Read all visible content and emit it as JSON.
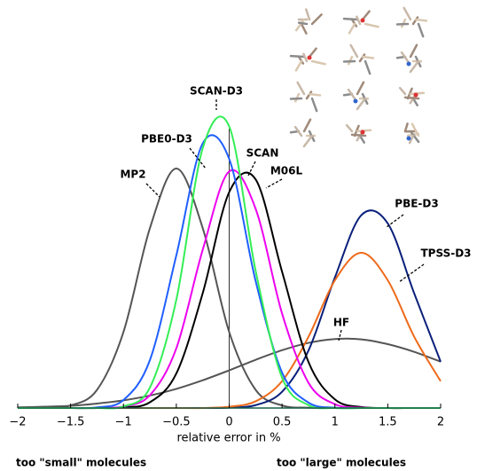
{
  "chart_data": {
    "type": "line",
    "x_label": "relative error in %",
    "annotations": [
      "too \"small\" molecules",
      "too \"large\" molecules"
    ],
    "x": [
      -2,
      -1.75,
      -1.5,
      -1.25,
      -1,
      -0.75,
      -0.5,
      -0.25,
      0,
      0.25,
      0.5,
      0.75,
      1,
      1.25,
      1.5,
      1.75,
      2
    ],
    "xlim": [
      -2,
      2
    ],
    "ylim": [
      0,
      1
    ],
    "xticks": [
      {
        "value": -2,
        "label": "−2"
      },
      {
        "value": -1.5,
        "label": "−1.5"
      },
      {
        "value": -1,
        "label": "−1"
      },
      {
        "value": -0.5,
        "label": "−0.5"
      },
      0,
      0.5,
      1,
      1.5,
      2
    ],
    "series": [
      {
        "name": "MP2",
        "color": "#555555",
        "values": [
          0,
          0.001,
          0.008,
          0.057,
          0.238,
          0.563,
          0.75,
          0.563,
          0.238,
          0.057,
          0.008,
          0.001,
          0,
          0,
          0,
          0,
          0
        ]
      },
      {
        "name": "PBE0-D3",
        "color": "#1f5fff",
        "values": [
          0,
          0,
          0,
          0.002,
          0.025,
          0.15,
          0.478,
          0.829,
          0.78,
          0.398,
          0.111,
          0.017,
          0.001,
          0,
          0,
          0,
          0
        ]
      },
      {
        "name": "SCAN-D3",
        "color": "#33ee55",
        "values": [
          0,
          0,
          0,
          0,
          0.005,
          0.064,
          0.339,
          0.814,
          0.882,
          0.43,
          0.095,
          0.009,
          0,
          0,
          0,
          0,
          0
        ]
      },
      {
        "name": "SCAN",
        "color": "#ee00ee",
        "values": [
          0,
          0,
          0,
          0,
          0.005,
          0.04,
          0.187,
          0.496,
          0.741,
          0.624,
          0.296,
          0.079,
          0.012,
          0.001,
          0,
          0,
          0
        ]
      },
      {
        "name": "M06L",
        "color": "#000000",
        "values": [
          0,
          0,
          0,
          0,
          0.002,
          0.018,
          0.108,
          0.36,
          0.676,
          0.716,
          0.427,
          0.144,
          0.027,
          0.003,
          0,
          0,
          0
        ]
      },
      {
        "name": "PBE-D3",
        "color": "#0a1f7a",
        "values": [
          0,
          0,
          0,
          0,
          0,
          0,
          0,
          0,
          0.001,
          0.009,
          0.051,
          0.18,
          0.409,
          0.604,
          0.578,
          0.359,
          0.145
        ]
      },
      {
        "name": "TPSS-D3",
        "color": "#ee6a1a",
        "values": [
          0,
          0,
          0,
          0,
          0,
          0,
          0,
          0,
          0.004,
          0.021,
          0.084,
          0.223,
          0.4,
          0.486,
          0.4,
          0.223,
          0.084
        ]
      },
      {
        "name": "HF",
        "color": "#555555",
        "values": [
          0.002,
          0.004,
          0.007,
          0.014,
          0.024,
          0.039,
          0.06,
          0.087,
          0.118,
          0.151,
          0.181,
          0.204,
          0.216,
          0.215,
          0.2,
          0.176,
          0.145
        ]
      }
    ]
  }
}
